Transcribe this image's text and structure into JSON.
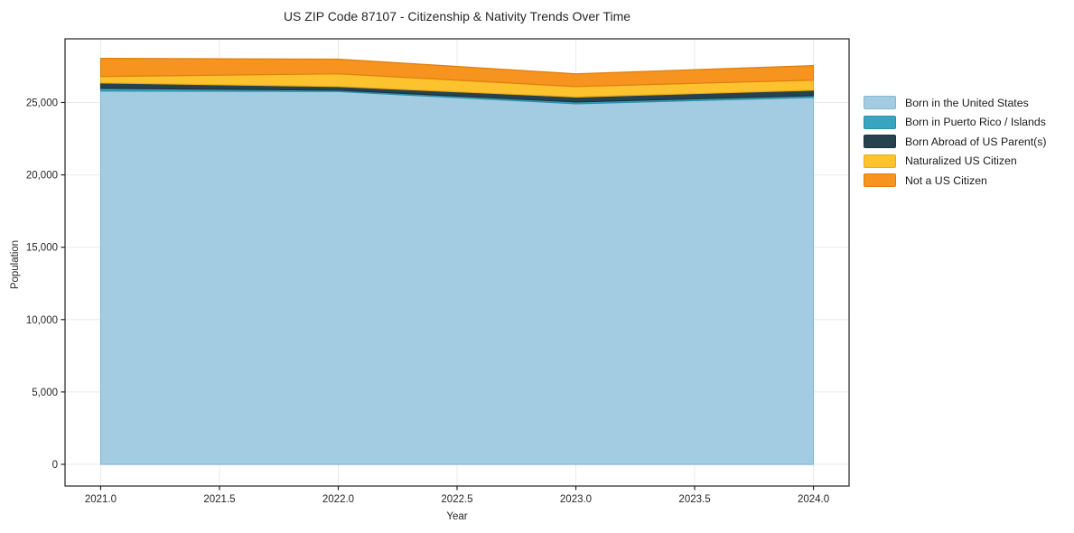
{
  "chart_data": {
    "type": "area",
    "title": "US ZIP Code 87107 - Citizenship & Nativity Trends Over Time",
    "xlabel": "Year",
    "ylabel": "Population",
    "stacked": true,
    "grid": true,
    "legend_position": "outside-right",
    "x": [
      2021,
      2022,
      2023,
      2024
    ],
    "xlim": [
      2020.85,
      2024.15
    ],
    "ylim": [
      -1500,
      29400
    ],
    "xticks": [
      {
        "v": 2021.0,
        "label": "2021.0"
      },
      {
        "v": 2021.5,
        "label": "2021.5"
      },
      {
        "v": 2022.0,
        "label": "2022.0"
      },
      {
        "v": 2022.5,
        "label": "2022.5"
      },
      {
        "v": 2023.0,
        "label": "2023.0"
      },
      {
        "v": 2023.5,
        "label": "2023.5"
      },
      {
        "v": 2024.0,
        "label": "2024.0"
      }
    ],
    "yticks": [
      {
        "v": 0,
        "label": "0"
      },
      {
        "v": 5000,
        "label": "5,000"
      },
      {
        "v": 10000,
        "label": "10,000"
      },
      {
        "v": 15000,
        "label": "15,000"
      },
      {
        "v": 20000,
        "label": "20,000"
      },
      {
        "v": 25000,
        "label": "25,000"
      }
    ],
    "series": [
      {
        "name": "Born in the United States",
        "color": "#a3cce3",
        "edge": "#84b8d4",
        "values": [
          25790,
          25760,
          24910,
          25350
        ]
      },
      {
        "name": "Born in Puerto Rico / Islands",
        "color": "#38a5c0",
        "edge": "#2b8fa8",
        "values": [
          190,
          95,
          125,
          125
        ]
      },
      {
        "name": "Born Abroad of US Parent(s)",
        "color": "#27424f",
        "edge": "#1c323d",
        "values": [
          375,
          250,
          345,
          380
        ]
      },
      {
        "name": "Naturalized US Citizen",
        "color": "#fdc32f",
        "edge": "#e8ad14",
        "values": [
          440,
          880,
          725,
          690
        ]
      },
      {
        "name": "Not a US Citizen",
        "color": "#f7941f",
        "edge": "#dd7f0d",
        "values": [
          1255,
          1010,
          880,
          1010
        ]
      }
    ],
    "colors": {
      "gridline": "#ebebeb",
      "spine": "#222222",
      "tick_label": "#262626",
      "background": "#ffffff"
    }
  }
}
